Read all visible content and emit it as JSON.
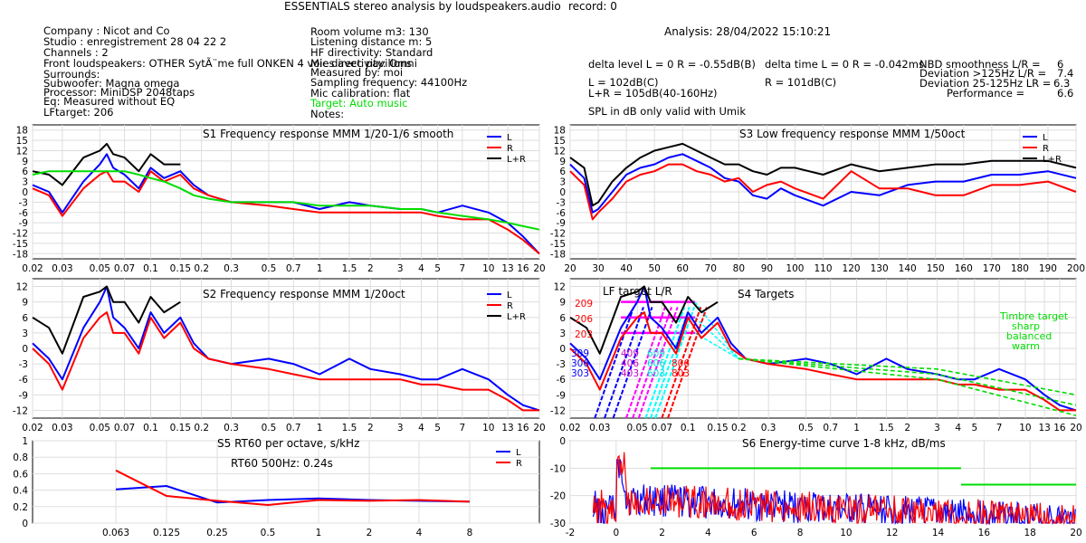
{
  "header": {
    "title": "ESSENTIALS stereo analysis by loudspeakers.audio",
    "record": "record: 0",
    "analysis": "Analysis: 28/04/2022 15:10:21"
  },
  "info_left": [
    "Company : Nicot and Co",
    "Studio : enregistrement 28 04 22 2",
    "Channels : 2",
    "Front loudspeakers: OTHER SytÃ¨me full ONKEN 4 voies avec pavillons",
    "Surrounds:",
    "Subwoofer: Magna omega",
    "Processor: MiniDSP 2048taps",
    "Eq: Measured without EQ",
    "LFtarget: 206"
  ],
  "info_mid": [
    "Room volume m3: 130",
    "Listening distance m: 5",
    "HF directivity: Standard",
    "Mic directivity: Omni",
    "Measured by: moi",
    "Sampling frequency: 44100Hz",
    "Mic calibration: flat",
    "Target: Auto music",
    "Notes:"
  ],
  "stats": {
    "delta_level": "delta level L = 0  R = -0.55dB(B)",
    "delta_time": "delta time  L = 0  R = -0.042ms",
    "l_level": "L =      102dB(C)",
    "r_level": "R =      101dB(C)",
    "lr_level": "L+R = 105dB(40-160Hz)",
    "spl_note": "SPL in dB only valid with Umik",
    "nbd_label": "NBD smoothness L/R =",
    "nbd_value": "6",
    "dev125_label": "Deviation >125Hz L/R =",
    "dev125_value": "7.4",
    "dev25_label": "Deviation 25-125Hz LR =",
    "dev25_value": "6.3",
    "perf_label": "Performance =",
    "perf_value": "6.6"
  },
  "colors": {
    "L": "#0000ff",
    "R": "#ff0000",
    "LR": "#000000",
    "target": "#00dd00",
    "magenta": "#ff00ff",
    "cyan": "#00ffff",
    "grid": "#dddddd"
  },
  "chart_data": [
    {
      "id": "S1",
      "type": "line",
      "title": "S1  Frequency response MMM 1/20-1/6 smooth",
      "x_ticks": [
        "0.02",
        "0.03",
        "0.05",
        "0.07",
        "0.1",
        "0.15",
        "0.2",
        "0.3",
        "0.5",
        "0.7",
        "1",
        "1.5",
        "2",
        "3",
        "4",
        "5",
        "7",
        "10",
        "13",
        "16",
        "20"
      ],
      "y_ticks": [
        "18",
        "15",
        "12",
        "9",
        "6",
        "3",
        "0",
        "-3",
        "-6",
        "-9",
        "-12",
        "-15",
        "-18"
      ],
      "legend": [
        "L",
        "R",
        "L+R"
      ],
      "x": [
        0.02,
        0.025,
        0.03,
        0.04,
        0.05,
        0.055,
        0.06,
        0.07,
        0.085,
        0.1,
        0.12,
        0.15,
        0.18,
        0.22,
        0.3,
        0.5,
        0.7,
        1,
        1.5,
        2,
        3,
        4,
        5,
        7,
        10,
        13,
        16,
        20
      ],
      "series": [
        {
          "name": "L",
          "values": [
            2,
            0,
            -6,
            3,
            8,
            11,
            7,
            5,
            1,
            7,
            4,
            6,
            2,
            -1,
            -3,
            -3,
            -3,
            -5,
            -3,
            -4,
            -5,
            -5,
            -6,
            -4,
            -6,
            -9,
            -13,
            -18
          ]
        },
        {
          "name": "R",
          "values": [
            1,
            -1,
            -7,
            1,
            5,
            6,
            3,
            3,
            0,
            6,
            3,
            5,
            1,
            -1,
            -3,
            -4,
            -5,
            -6,
            -6,
            -6,
            -6,
            -6,
            -7,
            -8,
            -8,
            -11,
            -14,
            -18
          ]
        },
        {
          "name": "L+R",
          "values": [
            6,
            5,
            2,
            10,
            12,
            14,
            11,
            10,
            6,
            11,
            8,
            8,
            null,
            null,
            null,
            null,
            null,
            null,
            null,
            null,
            null,
            null,
            null,
            null,
            null,
            null,
            null,
            null
          ]
        },
        {
          "name": "target",
          "values": [
            5,
            6,
            6,
            6,
            6,
            6,
            6,
            6,
            5,
            4,
            3,
            1,
            -1,
            -2,
            -3,
            -3,
            -3,
            -4,
            -4,
            -4,
            -5,
            -5,
            -6,
            -7,
            -8,
            -9,
            -10,
            -11
          ]
        }
      ]
    },
    {
      "id": "S2",
      "type": "line",
      "title": "S2  Frequency response MMM 1/20oct",
      "x_ticks": [
        "0.02",
        "0.03",
        "0.05",
        "0.07",
        "0.1",
        "0.15",
        "0.2",
        "0.3",
        "0.5",
        "0.7",
        "1",
        "1.5",
        "2",
        "3",
        "4",
        "5",
        "7",
        "10",
        "13",
        "16",
        "20"
      ],
      "y_ticks": [
        "12",
        "9",
        "6",
        "3",
        "0",
        "-3",
        "-6",
        "-9",
        "-12"
      ],
      "legend": [
        "L",
        "R",
        "L+R"
      ],
      "x": [
        0.02,
        0.025,
        0.03,
        0.04,
        0.05,
        0.055,
        0.06,
        0.07,
        0.085,
        0.1,
        0.12,
        0.15,
        0.18,
        0.22,
        0.3,
        0.5,
        0.7,
        1,
        1.5,
        2,
        3,
        4,
        5,
        7,
        10,
        13,
        16,
        20
      ],
      "series": [
        {
          "name": "L",
          "values": [
            1,
            -2,
            -6,
            4,
            9,
            12,
            6,
            4,
            0,
            7,
            3,
            6,
            1,
            -2,
            -3,
            -2,
            -3,
            -5,
            -2,
            -4,
            -5,
            -6,
            -6,
            -4,
            -6,
            -9,
            -11,
            -12
          ]
        },
        {
          "name": "R",
          "values": [
            0,
            -3,
            -8,
            2,
            6,
            7,
            3,
            3,
            -1,
            6,
            2,
            5,
            0,
            -2,
            -3,
            -4,
            -5,
            -6,
            -6,
            -6,
            -6,
            -7,
            -7,
            -8,
            -8,
            -10,
            -12,
            -12
          ]
        },
        {
          "name": "L+R",
          "values": [
            6,
            4,
            -1,
            10,
            11,
            12,
            9,
            9,
            5,
            10,
            7,
            9,
            null,
            null,
            null,
            null,
            null,
            null,
            null,
            null,
            null,
            null,
            null,
            null,
            null,
            null,
            null,
            null
          ]
        }
      ]
    },
    {
      "id": "S3",
      "type": "line",
      "title": "S3  Low frequency response MMM 1/50oct",
      "x_ticks": [
        "20",
        "30",
        "40",
        "50",
        "60",
        "70",
        "80",
        "90",
        "100",
        "110",
        "120",
        "130",
        "140",
        "150",
        "160",
        "170",
        "180",
        "190",
        "200"
      ],
      "y_ticks": [
        "18",
        "15",
        "12",
        "9",
        "6",
        "3",
        "0",
        "-3",
        "-6",
        "-9",
        "-12",
        "-15",
        "-18"
      ],
      "legend": [
        "L",
        "R",
        "L+R"
      ],
      "x": [
        20,
        25,
        28,
        30,
        35,
        40,
        45,
        50,
        55,
        60,
        65,
        70,
        75,
        80,
        85,
        90,
        95,
        100,
        110,
        120,
        130,
        140,
        150,
        160,
        170,
        180,
        190,
        200
      ],
      "series": [
        {
          "name": "L",
          "values": [
            8,
            4,
            -6,
            -5,
            0,
            5,
            7,
            8,
            10,
            11,
            9,
            7,
            4,
            3,
            -1,
            -2,
            1,
            -1,
            -4,
            0,
            -1,
            2,
            3,
            3,
            5,
            5,
            6,
            4
          ]
        },
        {
          "name": "R",
          "values": [
            6,
            2,
            -8,
            -6,
            -2,
            3,
            5,
            6,
            8,
            8,
            6,
            5,
            3,
            4,
            0,
            2,
            3,
            1,
            -2,
            6,
            1,
            1,
            -1,
            -1,
            2,
            2,
            3,
            0
          ]
        },
        {
          "name": "L+R",
          "values": [
            10,
            7,
            -4,
            -3,
            3,
            7,
            10,
            12,
            13,
            14,
            12,
            10,
            8,
            8,
            6,
            5,
            7,
            7,
            5,
            8,
            6,
            7,
            8,
            8,
            9,
            9,
            9,
            7
          ]
        }
      ]
    },
    {
      "id": "S4",
      "type": "line",
      "title": "S4 Targets",
      "subtitle": "LF target  L/R",
      "x_ticks": [
        "0.02",
        "0.03",
        "0.05",
        "0.07",
        "0.1",
        "0.15",
        "0.2",
        "0.3",
        "0.5",
        "0.7",
        "1",
        "1.5",
        "2",
        "3",
        "4",
        "5",
        "7",
        "10",
        "13",
        "16",
        "20"
      ],
      "y_ticks": [
        "12",
        "9",
        "6",
        "3",
        "0",
        "-3",
        "-6",
        "-9",
        "-12"
      ],
      "labels_red": [
        "209",
        "206",
        "203"
      ],
      "labels_blue": [
        "309",
        "306",
        "303"
      ],
      "labels_magenta": [
        "409",
        "406",
        "403"
      ],
      "labels_cyan": [
        "609",
        "606",
        "603"
      ],
      "labels_red2": [
        "806",
        "803"
      ],
      "timbre": [
        "Timbre target",
        "sharp",
        "balanced",
        "warm"
      ],
      "x": [
        0.02,
        0.025,
        0.03,
        0.04,
        0.05,
        0.055,
        0.06,
        0.07,
        0.085,
        0.1,
        0.12,
        0.15,
        0.18,
        0.22,
        0.3,
        0.5,
        0.7,
        1,
        1.5,
        2,
        3,
        4,
        5,
        7,
        10,
        13,
        16,
        20
      ],
      "series": [
        {
          "name": "L",
          "values": [
            1,
            -2,
            -6,
            4,
            9,
            12,
            6,
            4,
            0,
            7,
            3,
            6,
            1,
            -2,
            -3,
            -2,
            -3,
            -5,
            -2,
            -4,
            -5,
            -6,
            -6,
            -4,
            -6,
            -9,
            -11,
            -12
          ]
        },
        {
          "name": "R",
          "values": [
            0,
            -3,
            -8,
            2,
            6,
            7,
            3,
            3,
            -1,
            6,
            2,
            5,
            0,
            -2,
            -3,
            -4,
            -5,
            -6,
            -6,
            -6,
            -6,
            -7,
            -7,
            -8,
            -8,
            -10,
            -12,
            -12
          ]
        },
        {
          "name": "L+R",
          "values": [
            6,
            4,
            -1,
            10,
            11,
            12,
            9,
            9,
            5,
            10,
            7,
            9,
            null,
            null,
            null,
            null,
            null,
            null,
            null,
            null,
            null,
            null,
            null,
            null,
            null,
            null,
            null,
            null
          ]
        }
      ]
    },
    {
      "id": "S5",
      "type": "line",
      "title": "S5  RT60 per octave, s/kHz",
      "annotation": "RT60 500Hz: 0.24s",
      "x_ticks": [
        "0.063",
        "0.125",
        "0.25",
        "0.5",
        "1",
        "2",
        "4",
        "8"
      ],
      "y_ticks": [
        "1",
        "0.8",
        "0.6",
        "0.4",
        "0.2",
        "0"
      ],
      "legend": [
        "L",
        "R"
      ],
      "categories": [
        "0.063",
        "0.125",
        "0.25",
        "0.5",
        "1",
        "2",
        "4",
        "8"
      ],
      "series": [
        {
          "name": "L",
          "values": [
            0.41,
            0.45,
            0.25,
            0.28,
            0.3,
            0.28,
            0.27,
            0.26
          ]
        },
        {
          "name": "R",
          "values": [
            0.64,
            0.33,
            0.27,
            0.22,
            0.28,
            0.27,
            0.28,
            0.26
          ]
        }
      ]
    },
    {
      "id": "S6",
      "type": "line",
      "title": "S6  Energy-time curve 1-8 kHz, dB/ms",
      "x_ticks": [
        "-2",
        "0",
        "2",
        "4",
        "6",
        "8",
        "10",
        "12",
        "14",
        "16",
        "18",
        "20"
      ],
      "y_ticks": [
        "0",
        "-10",
        "-20",
        "-30"
      ],
      "xlim": [
        -2,
        20
      ],
      "ylim": [
        -30,
        0
      ],
      "target_segments": [
        {
          "x": [
            1.5,
            15
          ],
          "y": [
            -10,
            -10
          ]
        },
        {
          "x": [
            15,
            20
          ],
          "y": [
            -16,
            -16
          ]
        }
      ]
    }
  ]
}
